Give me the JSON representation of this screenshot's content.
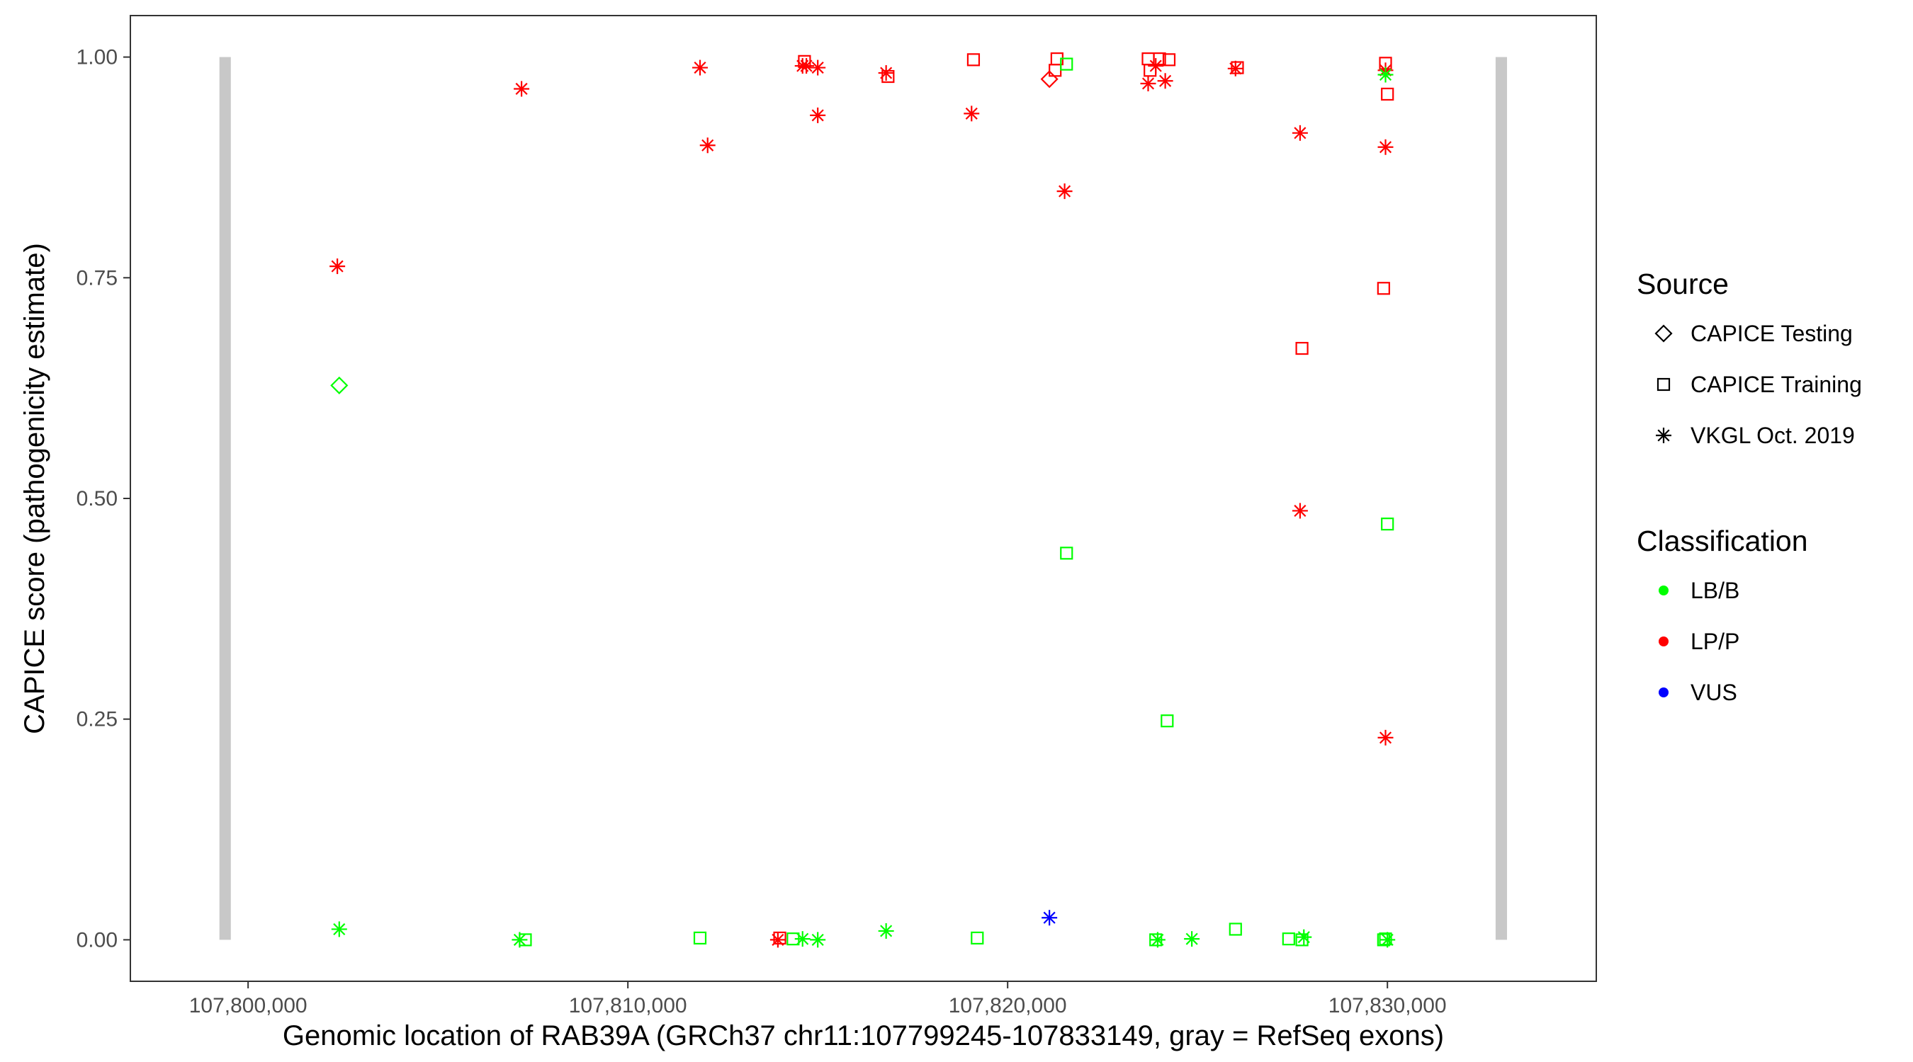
{
  "chart_data": {
    "type": "scatter",
    "title": "",
    "xlabel": "Genomic location of RAB39A (GRCh37 chr11:107799245-107833149, gray = RefSeq exons)",
    "ylabel": "CAPICE score (pathogenicity estimate)",
    "xlim": [
      107796900,
      107835500
    ],
    "ylim": [
      -0.047,
      1.047
    ],
    "x_ticks": [
      107800000,
      107810000,
      107820000,
      107830000
    ],
    "x_tick_labels": [
      "107,800,000",
      "107,810,000",
      "107,820,000",
      "107,830,000"
    ],
    "y_ticks": [
      0,
      0.25,
      0.5,
      0.75,
      1.0
    ],
    "y_tick_labels": [
      "0.00",
      "0.25",
      "0.50",
      "0.75",
      "1.00"
    ],
    "grid": false,
    "exons": [
      {
        "start": 107799245,
        "end": 107799545,
        "y_from": 0,
        "y_to": 1
      },
      {
        "start": 107832849,
        "end": 107833149,
        "y_from": 0,
        "y_to": 1
      }
    ],
    "legend_position": "right",
    "legend": {
      "shape_title": "Source",
      "shapes": [
        {
          "key": "diamond",
          "label": "CAPICE Testing"
        },
        {
          "key": "square",
          "label": "CAPICE Training"
        },
        {
          "key": "star",
          "label": "VKGL Oct. 2019"
        }
      ],
      "color_title": "Classification",
      "colors": [
        {
          "key": "LB/B",
          "label": "LB/B",
          "color": "#00ff00"
        },
        {
          "key": "LP/P",
          "label": "LP/P",
          "color": "#ff0000"
        },
        {
          "key": "VUS",
          "label": "VUS",
          "color": "#0000ff"
        }
      ]
    },
    "points": [
      {
        "x": 107802350,
        "y": 0.763,
        "shape": "star",
        "cls": "LP/P"
      },
      {
        "x": 107802400,
        "y": 0.628,
        "shape": "diamond",
        "cls": "LB/B"
      },
      {
        "x": 107802400,
        "y": 0.012,
        "shape": "star",
        "cls": "LB/B"
      },
      {
        "x": 107807200,
        "y": 0.964,
        "shape": "star",
        "cls": "LP/P"
      },
      {
        "x": 107807150,
        "y": 0.0,
        "shape": "star",
        "cls": "LB/B"
      },
      {
        "x": 107807300,
        "y": 0.0,
        "shape": "square",
        "cls": "LB/B"
      },
      {
        "x": 107811900,
        "y": 0.988,
        "shape": "star",
        "cls": "LP/P"
      },
      {
        "x": 107812100,
        "y": 0.9,
        "shape": "star",
        "cls": "LP/P"
      },
      {
        "x": 107811900,
        "y": 0.002,
        "shape": "square",
        "cls": "LB/B"
      },
      {
        "x": 107813950,
        "y": 0.0,
        "shape": "star",
        "cls": "LP/P"
      },
      {
        "x": 107814000,
        "y": 0.002,
        "shape": "square",
        "cls": "LP/P"
      },
      {
        "x": 107814350,
        "y": 0.001,
        "shape": "square",
        "cls": "LB/B"
      },
      {
        "x": 107814600,
        "y": 0.001,
        "shape": "star",
        "cls": "LB/B"
      },
      {
        "x": 107815000,
        "y": 0.0,
        "shape": "star",
        "cls": "LB/B"
      },
      {
        "x": 107814650,
        "y": 0.995,
        "shape": "square",
        "cls": "LP/P"
      },
      {
        "x": 107814600,
        "y": 0.99,
        "shape": "star",
        "cls": "LP/P"
      },
      {
        "x": 107814700,
        "y": 0.99,
        "shape": "star",
        "cls": "LP/P"
      },
      {
        "x": 107815000,
        "y": 0.988,
        "shape": "star",
        "cls": "LP/P"
      },
      {
        "x": 107815000,
        "y": 0.934,
        "shape": "star",
        "cls": "LP/P"
      },
      {
        "x": 107816800,
        "y": 0.982,
        "shape": "star",
        "cls": "LP/P"
      },
      {
        "x": 107816850,
        "y": 0.978,
        "shape": "square",
        "cls": "LP/P"
      },
      {
        "x": 107816800,
        "y": 0.01,
        "shape": "star",
        "cls": "LB/B"
      },
      {
        "x": 107819100,
        "y": 0.997,
        "shape": "square",
        "cls": "LP/P"
      },
      {
        "x": 107819050,
        "y": 0.936,
        "shape": "star",
        "cls": "LP/P"
      },
      {
        "x": 107819200,
        "y": 0.002,
        "shape": "square",
        "cls": "LB/B"
      },
      {
        "x": 107821100,
        "y": 0.025,
        "shape": "star",
        "cls": "VUS"
      },
      {
        "x": 107821100,
        "y": 0.975,
        "shape": "diamond",
        "cls": "LP/P"
      },
      {
        "x": 107821300,
        "y": 0.998,
        "shape": "square",
        "cls": "LP/P"
      },
      {
        "x": 107821250,
        "y": 0.985,
        "shape": "square",
        "cls": "LP/P"
      },
      {
        "x": 107821550,
        "y": 0.992,
        "shape": "square",
        "cls": "LB/B"
      },
      {
        "x": 107821500,
        "y": 0.848,
        "shape": "star",
        "cls": "LP/P"
      },
      {
        "x": 107821550,
        "y": 0.438,
        "shape": "square",
        "cls": "LB/B"
      },
      {
        "x": 107823700,
        "y": 0.998,
        "shape": "square",
        "cls": "LP/P"
      },
      {
        "x": 107823750,
        "y": 0.985,
        "shape": "square",
        "cls": "LP/P"
      },
      {
        "x": 107824000,
        "y": 0.998,
        "shape": "square",
        "cls": "LP/P"
      },
      {
        "x": 107823900,
        "y": 0.99,
        "shape": "star",
        "cls": "LP/P"
      },
      {
        "x": 107824250,
        "y": 0.997,
        "shape": "square",
        "cls": "LP/P"
      },
      {
        "x": 107823700,
        "y": 0.97,
        "shape": "star",
        "cls": "LP/P"
      },
      {
        "x": 107824150,
        "y": 0.973,
        "shape": "star",
        "cls": "LP/P"
      },
      {
        "x": 107824200,
        "y": 0.248,
        "shape": "square",
        "cls": "LB/B"
      },
      {
        "x": 107823900,
        "y": 0.0,
        "shape": "square",
        "cls": "LB/B"
      },
      {
        "x": 107823950,
        "y": 0.0,
        "shape": "star",
        "cls": "LB/B"
      },
      {
        "x": 107824850,
        "y": 0.001,
        "shape": "star",
        "cls": "LB/B"
      },
      {
        "x": 107826050,
        "y": 0.988,
        "shape": "square",
        "cls": "LP/P"
      },
      {
        "x": 107826000,
        "y": 0.987,
        "shape": "star",
        "cls": "LP/P"
      },
      {
        "x": 107826000,
        "y": 0.012,
        "shape": "square",
        "cls": "LB/B"
      },
      {
        "x": 107827400,
        "y": 0.001,
        "shape": "square",
        "cls": "LB/B"
      },
      {
        "x": 107827700,
        "y": 0.914,
        "shape": "star",
        "cls": "LP/P"
      },
      {
        "x": 107827750,
        "y": 0.67,
        "shape": "square",
        "cls": "LP/P"
      },
      {
        "x": 107827700,
        "y": 0.486,
        "shape": "star",
        "cls": "LP/P"
      },
      {
        "x": 107827800,
        "y": 0.003,
        "shape": "star",
        "cls": "LB/B"
      },
      {
        "x": 107827750,
        "y": 0.0,
        "shape": "square",
        "cls": "LB/B"
      },
      {
        "x": 107829950,
        "y": 0.993,
        "shape": "square",
        "cls": "LP/P"
      },
      {
        "x": 107829950,
        "y": 0.985,
        "shape": "star",
        "cls": "LP/P"
      },
      {
        "x": 107829950,
        "y": 0.98,
        "shape": "star",
        "cls": "LB/B"
      },
      {
        "x": 107830000,
        "y": 0.958,
        "shape": "square",
        "cls": "LP/P"
      },
      {
        "x": 107829950,
        "y": 0.898,
        "shape": "star",
        "cls": "LP/P"
      },
      {
        "x": 107829900,
        "y": 0.738,
        "shape": "square",
        "cls": "LP/P"
      },
      {
        "x": 107830000,
        "y": 0.471,
        "shape": "square",
        "cls": "LB/B"
      },
      {
        "x": 107829950,
        "y": 0.229,
        "shape": "star",
        "cls": "LP/P"
      },
      {
        "x": 107829900,
        "y": 0.0,
        "shape": "square",
        "cls": "LB/B"
      },
      {
        "x": 107830000,
        "y": 0.0,
        "shape": "star",
        "cls": "LB/B"
      },
      {
        "x": 107829950,
        "y": 0.001,
        "shape": "square",
        "cls": "LB/B"
      }
    ]
  }
}
